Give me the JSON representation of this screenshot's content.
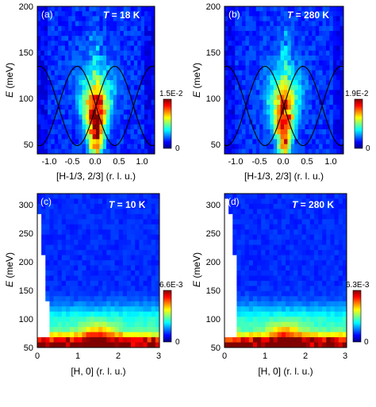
{
  "figure": {
    "panels": [
      {
        "label": "(a)",
        "temp_prefix": "T",
        "temp_value": " = 18 K"
      },
      {
        "label": "(b)",
        "temp_prefix": "T",
        "temp_value": " = 280 K"
      },
      {
        "label": "(c)",
        "temp_prefix": "T",
        "temp_value": " = 10 K"
      },
      {
        "label": "(d)",
        "temp_prefix": "T",
        "temp_value": " = 280 K"
      }
    ],
    "top_xlabel": "[H-1/3, 2/3] (r. l. u.)",
    "bottom_xlabel": "[H, 0] (r. l. u.)",
    "ylabel_var": "E",
    "ylabel_unit": " (meV)",
    "colorbars": [
      {
        "max_label": "1.5E-2",
        "min_label": "0"
      },
      {
        "max_label": "1.9E-2",
        "min_label": "0"
      },
      {
        "max_label": "6.6E-3",
        "min_label": "0"
      },
      {
        "max_label": "6.3E-3",
        "min_label": "0"
      }
    ]
  },
  "chart_data": [
    {
      "type": "heatmap",
      "panel": "(a)",
      "xlabel": "[H-1/3, 2/3] (r. l. u.)",
      "ylabel": "E (meV)",
      "xlim": [
        -1.25,
        1.25
      ],
      "ylim": [
        40,
        200
      ],
      "xticks": [
        -1.0,
        -0.5,
        0.0,
        0.5,
        1.0
      ],
      "yticks": [
        50,
        100,
        150,
        200
      ],
      "colorbar": {
        "min": 0,
        "max": 0.015,
        "labels": [
          "1.5E-2",
          "0"
        ]
      },
      "annotation": "T = 18 K",
      "dispersion_curves": "sinusoidal branches crossing near H = 0 at E ≈ 95 meV, minima ≈ 48 meV at H ≈ ±0.4, maxima ≈ 135 meV"
    },
    {
      "type": "heatmap",
      "panel": "(b)",
      "xlabel": "[H-1/3, 2/3] (r. l. u.)",
      "ylabel": "E (meV)",
      "xlim": [
        -1.25,
        1.25
      ],
      "ylim": [
        40,
        200
      ],
      "xticks": [
        -1.0,
        -0.5,
        0.0,
        0.5,
        1.0
      ],
      "yticks": [
        50,
        100,
        150,
        200
      ],
      "colorbar": {
        "min": 0,
        "max": 0.019,
        "labels": [
          "1.9E-2",
          "0"
        ]
      },
      "annotation": "T = 280 K"
    },
    {
      "type": "heatmap",
      "panel": "(c)",
      "xlabel": "[H, 0] (r. l. u.)",
      "ylabel": "E (meV)",
      "xlim": [
        0,
        3
      ],
      "ylim": [
        50,
        320
      ],
      "xticks": [
        0,
        1,
        2,
        3
      ],
      "yticks": [
        50,
        100,
        150,
        200,
        250,
        300
      ],
      "colorbar": {
        "min": 0,
        "max": 0.0066,
        "labels": [
          "6.6E-3",
          "0"
        ]
      },
      "annotation": "T = 10 K"
    },
    {
      "type": "heatmap",
      "panel": "(d)",
      "xlabel": "[H, 0] (r. l. u.)",
      "ylabel": "E (meV)",
      "xlim": [
        0,
        3
      ],
      "ylim": [
        50,
        320
      ],
      "xticks": [
        0,
        1,
        2,
        3
      ],
      "yticks": [
        50,
        100,
        150,
        200,
        250,
        300
      ],
      "colorbar": {
        "min": 0,
        "max": 0.0063,
        "labels": [
          "6.3E-3",
          "0"
        ]
      },
      "annotation": "T = 280 K"
    }
  ]
}
